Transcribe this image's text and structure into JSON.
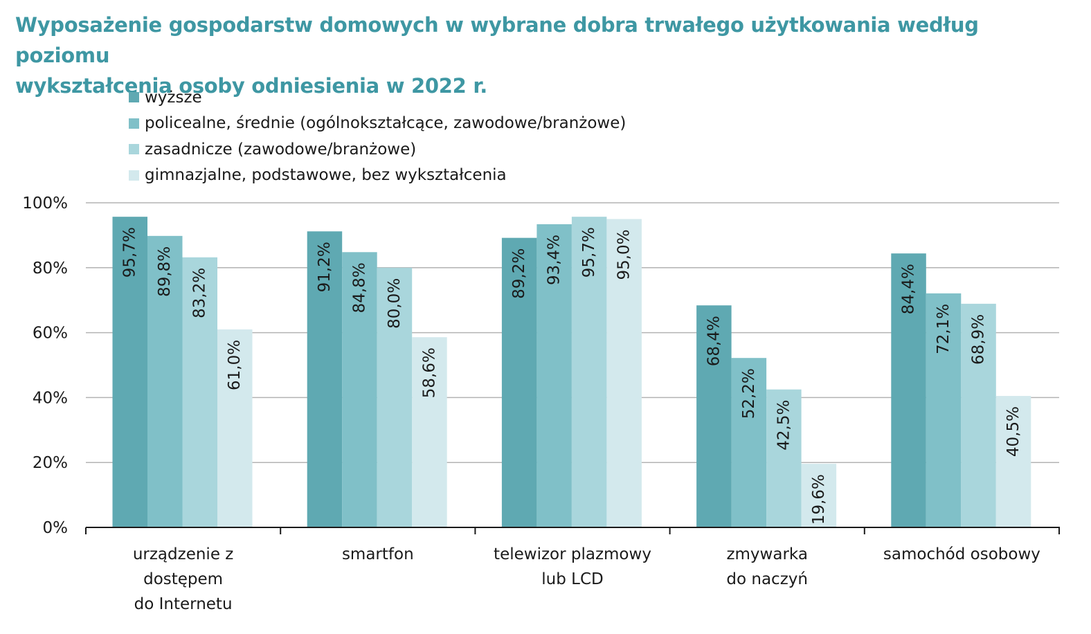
{
  "chart_data": {
    "type": "bar",
    "title_lines": [
      "Wyposażenie gospodarstw domowych w wybrane dobra trwałego użytkowania według poziomu",
      "wykształcenia osoby odniesienia w 2022 r."
    ],
    "categories": [
      [
        "urządzenie z",
        "dostępem",
        "do Internetu"
      ],
      [
        "smartfon"
      ],
      [
        "telewizor plazmowy",
        "lub LCD"
      ],
      [
        "zmywarka",
        "do naczyń"
      ],
      [
        "samochód osobowy"
      ]
    ],
    "series": [
      {
        "name": "wyższe",
        "color": "#5fa9b2",
        "values": [
          95.7,
          91.2,
          89.2,
          68.4,
          84.4
        ],
        "labels": [
          "95,7%",
          "91,2%",
          "89,2%",
          "68,4%",
          "84,4%"
        ]
      },
      {
        "name": "policealne, średnie (ogólnokształcące, zawodowe/branżowe)",
        "color": "#80c0c8",
        "values": [
          89.8,
          84.8,
          93.4,
          52.2,
          72.1
        ],
        "labels": [
          "89,8%",
          "84,8%",
          "93,4%",
          "52,2%",
          "72,1%"
        ]
      },
      {
        "name": "zasadnicze (zawodowe/branżowe)",
        "color": "#a9d6dc",
        "values": [
          83.2,
          80.0,
          95.7,
          42.5,
          68.9
        ],
        "labels": [
          "83,2%",
          "80,0%",
          "95,7%",
          "42,5%",
          "68,9%"
        ]
      },
      {
        "name": "gimnazjalne, podstawowe, bez wykształcenia",
        "color": "#d3e9ed",
        "values": [
          61.0,
          58.6,
          95.0,
          19.6,
          40.5
        ],
        "labels": [
          "61,0%",
          "58,6%",
          "95,0%",
          "19,6%",
          "40,5%"
        ]
      }
    ],
    "y_ticks": [
      "0%",
      "20%",
      "40%",
      "60%",
      "80%",
      "100%"
    ],
    "ylim": [
      0,
      100
    ],
    "grid": true,
    "legend_position": "top-left",
    "gridline_color": "#b3b3b3",
    "axis_color": "#1a1a1a"
  }
}
